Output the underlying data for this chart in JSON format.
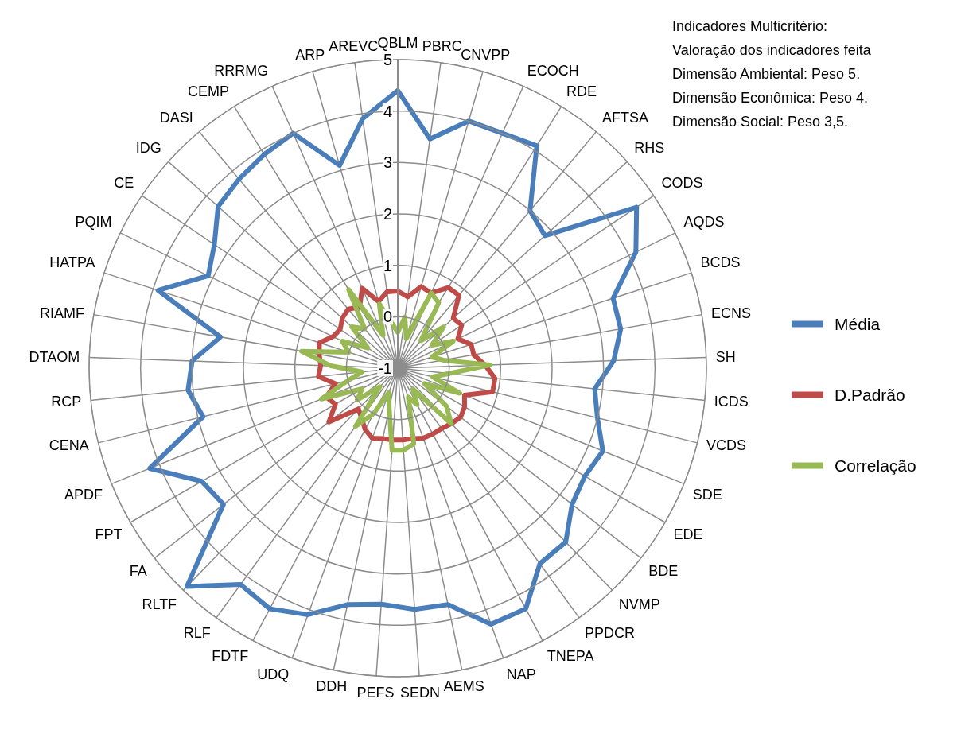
{
  "chart_data": {
    "type": "radar",
    "categories": [
      "QBLM",
      "PBRC",
      "CNVPP",
      "ECOCH",
      "RDE",
      "AFTSA",
      "RHS",
      "CODS",
      "AQDS",
      "BCDS",
      "ECNS",
      "SH",
      "ICDS",
      "VCDS",
      "SDE",
      "EDE",
      "BDE",
      "NVMP",
      "PPDCR",
      "TNEPA",
      "NAP",
      "AEMS",
      "SEDN",
      "PEFS",
      "DDH",
      "UDQ",
      "FDTF",
      "RLF",
      "RLTF",
      "FA",
      "FPT",
      "APDF",
      "CENA",
      "RCP",
      "DTAOM",
      "RIAMF",
      "HATPA",
      "PQIM",
      "CE",
      "IDG",
      "DASI",
      "CEMP",
      "RRRMG",
      "ARP",
      "AREVC"
    ],
    "series": [
      {
        "name": "Média",
        "color": "#4a7ebb",
        "values": [
          4.4,
          3.5,
          4.0,
          4.0,
          4.1,
          3.0,
          2.85,
          4.6,
          4.15,
          3.4,
          3.4,
          3.2,
          2.85,
          3.0,
          3.3,
          3.2,
          3.3,
          3.7,
          3.7,
          4.3,
          4.3,
          3.7,
          3.7,
          3.6,
          3.7,
          4.1,
          4.3,
          4.2,
          4.9,
          3.3,
          3.4,
          4.2,
          2.9,
          3.1,
          3.0,
          2.5,
          3.9,
          3.1,
          3.3,
          3.7,
          3.8,
          3.9,
          4.0,
          3.1,
          3.9
        ]
      },
      {
        "name": "D.Padrão",
        "color": "#be4b48",
        "values": [
          0.5,
          0.4,
          0.65,
          0.6,
          0.85,
          0.85,
          0.45,
          0.5,
          0.3,
          0.5,
          0.5,
          0.7,
          0.9,
          0.9,
          0.4,
          0.5,
          0.55,
          0.5,
          0.45,
          0.45,
          0.45,
          0.4,
          0.4,
          0.4,
          0.4,
          0.45,
          0.35,
          0.2,
          0.1,
          0.7,
          0.4,
          0.5,
          0.25,
          0.55,
          0.5,
          0.55,
          0.6,
          0.4,
          0.35,
          0.45,
          0.5,
          0.4,
          0.7,
          0.35,
          0.5
        ]
      },
      {
        "name": "Correlação",
        "color": "#98b954",
        "values": [
          -0.3,
          0.0,
          -0.4,
          0.6,
          0.5,
          -0.3,
          0.2,
          -0.2,
          0.2,
          -0.3,
          -0.1,
          0.8,
          0.0,
          -0.3,
          0.3,
          -0.4,
          0.2,
          0.5,
          -0.5,
          -0.2,
          -0.4,
          0.5,
          0.6,
          0.6,
          -0.2,
          -0.5,
          0.0,
          0.4,
          -0.5,
          0.0,
          -0.2,
          0.6,
          0.0,
          -0.3,
          0.3,
          0.9,
          0.0,
          0.2,
          -0.3,
          0.2,
          0.0,
          0.8,
          -0.3,
          0.3,
          -0.1
        ]
      }
    ],
    "ylim": [
      -1,
      5
    ],
    "yticks": [
      -1,
      0,
      1,
      2,
      3,
      4,
      5
    ],
    "grid": true,
    "legend": "right",
    "marker": "none",
    "line_style": "solid",
    "annotations": [
      "Indicadores Multicritério:",
      "Valoração dos indicadores feita",
      "Dimensão Ambiental: Peso 5.",
      "Dimensão Econômica: Peso 4.",
      "Dimensão Social: Peso 3,5."
    ]
  }
}
